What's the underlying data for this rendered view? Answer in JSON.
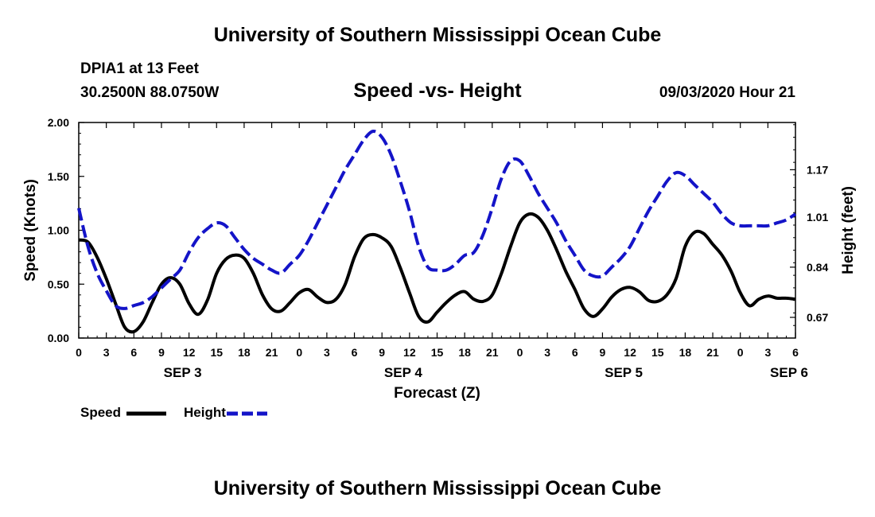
{
  "header": {
    "title": "University of Southern Mississippi Ocean Cube",
    "station": "DPIA1 at 13 Feet",
    "coords": "30.2500N 88.0750W",
    "plot_title": "Speed -vs- Height",
    "datetime": "09/03/2020 Hour 21"
  },
  "footer": {
    "title": "University of Southern Mississippi Ocean Cube"
  },
  "legend": {
    "speed_label": "Speed",
    "height_label": "Height"
  },
  "colors": {
    "speed": "#000000",
    "height": "#1414c8"
  },
  "chart_data": {
    "type": "line",
    "title": "Speed -vs- Height",
    "xlabel": "Forecast (Z)",
    "ylabel": "Speed (Knots)",
    "y2label": "Height (feet)",
    "x_range_hours": [
      0,
      78
    ],
    "ylim": [
      0,
      2
    ],
    "y2lim": [
      0.6,
      1.33
    ],
    "x_tick_hours": [
      0,
      3,
      6,
      9,
      12,
      15,
      18,
      21,
      24,
      27,
      30,
      33,
      36,
      39,
      42,
      45,
      48,
      51,
      54,
      57,
      60,
      63,
      66,
      69,
      72,
      75,
      78
    ],
    "x_tick_labels": [
      "0",
      "3",
      "6",
      "9",
      "12",
      "15",
      "18",
      "21",
      "0",
      "3",
      "6",
      "9",
      "12",
      "15",
      "18",
      "21",
      "0",
      "3",
      "6",
      "9",
      "12",
      "15",
      "18",
      "21",
      "0",
      "3",
      "6"
    ],
    "date_labels": [
      {
        "hour": 12,
        "label": "SEP 3"
      },
      {
        "hour": 36,
        "label": "SEP 4"
      },
      {
        "hour": 60,
        "label": "SEP 5"
      },
      {
        "hour": 78,
        "label": "SEP 6"
      }
    ],
    "y_ticks": [
      0,
      0.5,
      1.0,
      1.5,
      2.0
    ],
    "y_tick_labels": [
      "0.00",
      "0.50",
      "1.00",
      "1.50",
      "2.00"
    ],
    "y2_ticks": [
      0.67,
      0.84,
      1.01,
      1.17
    ],
    "y2_tick_labels": [
      "0.67",
      "0.84",
      "1.01",
      "1.17"
    ],
    "series": [
      {
        "name": "Speed",
        "axis": "left",
        "style": "solid",
        "x": [
          0,
          1,
          2,
          3,
          4,
          5,
          6,
          7,
          8,
          9,
          10,
          11,
          12,
          13,
          14,
          15,
          16,
          17,
          18,
          19,
          20,
          21,
          22,
          23,
          24,
          25,
          26,
          27,
          28,
          29,
          30,
          31,
          32,
          33,
          34,
          35,
          36,
          37,
          38,
          39,
          40,
          41,
          42,
          43,
          44,
          45,
          46,
          47,
          48,
          49,
          50,
          51,
          52,
          53,
          54,
          55,
          56,
          57,
          58,
          59,
          60,
          61,
          62,
          63,
          64,
          65,
          66,
          67,
          68,
          69,
          70,
          71,
          72,
          73,
          74,
          75,
          76,
          77,
          78
        ],
        "values": [
          0.91,
          0.89,
          0.75,
          0.55,
          0.32,
          0.1,
          0.06,
          0.15,
          0.33,
          0.5,
          0.56,
          0.5,
          0.32,
          0.22,
          0.35,
          0.6,
          0.73,
          0.77,
          0.74,
          0.6,
          0.4,
          0.27,
          0.25,
          0.33,
          0.42,
          0.45,
          0.38,
          0.33,
          0.36,
          0.5,
          0.75,
          0.92,
          0.96,
          0.93,
          0.85,
          0.65,
          0.42,
          0.2,
          0.15,
          0.24,
          0.33,
          0.4,
          0.43,
          0.36,
          0.34,
          0.4,
          0.6,
          0.85,
          1.07,
          1.15,
          1.12,
          1.0,
          0.82,
          0.62,
          0.45,
          0.27,
          0.2,
          0.27,
          0.38,
          0.45,
          0.47,
          0.43,
          0.35,
          0.34,
          0.4,
          0.55,
          0.85,
          0.98,
          0.97,
          0.87,
          0.77,
          0.62,
          0.42,
          0.3,
          0.36,
          0.39,
          0.37,
          0.37,
          0.36
        ]
      },
      {
        "name": "Height",
        "axis": "right",
        "style": "dashed",
        "x": [
          0,
          1,
          2,
          3,
          4,
          5,
          6,
          7,
          8,
          9,
          10,
          11,
          12,
          13,
          14,
          15,
          16,
          17,
          18,
          19,
          20,
          21,
          22,
          23,
          24,
          25,
          26,
          27,
          28,
          29,
          30,
          31,
          32,
          33,
          34,
          35,
          36,
          37,
          38,
          39,
          40,
          41,
          42,
          43,
          44,
          45,
          46,
          47,
          48,
          49,
          50,
          51,
          52,
          53,
          54,
          55,
          56,
          57,
          58,
          59,
          60,
          61,
          62,
          63,
          64,
          65,
          66,
          67,
          68,
          69,
          70,
          71,
          72,
          73,
          74,
          75,
          76,
          77,
          78
        ],
        "values": [
          1.04,
          0.91,
          0.82,
          0.76,
          0.71,
          0.7,
          0.71,
          0.72,
          0.74,
          0.77,
          0.8,
          0.83,
          0.89,
          0.94,
          0.97,
          0.99,
          0.98,
          0.94,
          0.9,
          0.87,
          0.85,
          0.83,
          0.82,
          0.85,
          0.88,
          0.93,
          0.99,
          1.05,
          1.11,
          1.17,
          1.22,
          1.27,
          1.3,
          1.28,
          1.22,
          1.13,
          1.03,
          0.91,
          0.84,
          0.83,
          0.83,
          0.85,
          0.88,
          0.89,
          0.95,
          1.04,
          1.14,
          1.2,
          1.2,
          1.15,
          1.09,
          1.04,
          0.99,
          0.93,
          0.88,
          0.83,
          0.81,
          0.81,
          0.84,
          0.87,
          0.91,
          0.97,
          1.03,
          1.08,
          1.13,
          1.16,
          1.15,
          1.12,
          1.09,
          1.06,
          1.02,
          0.99,
          0.98,
          0.98,
          0.98,
          0.98,
          0.99,
          1.0,
          1.02
        ]
      }
    ]
  }
}
